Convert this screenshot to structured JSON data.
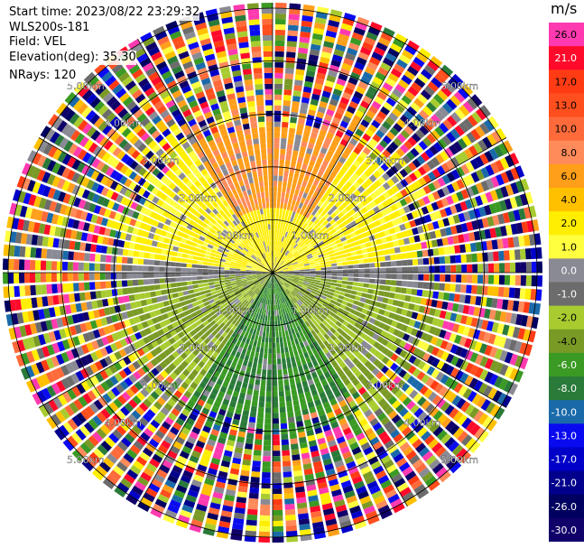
{
  "info": {
    "start_time": "Start time: 2023/08/22 23:29:32",
    "instrument": "WLS200s-181",
    "field": "Field: VEL",
    "elevation": "Elevation(deg): 35.30",
    "nrays": "NRays: 120"
  },
  "chart_data": {
    "type": "ppi",
    "field": "VEL",
    "unit": "m/s",
    "nrays": 120,
    "range_rings_km": [
      1.0,
      2.0,
      3.0,
      4.0,
      5.0
    ],
    "ring_labels": [
      "1.00km",
      "2.00km",
      "3.00km",
      "4.00km",
      "5.00km"
    ],
    "max_range_km": 5.0,
    "colorbar": {
      "ticks": [
        "26.0",
        "21.0",
        "17.0",
        "13.0",
        "10.0",
        "8.0",
        "6.0",
        "4.0",
        "2.0",
        "1.0",
        "0.0",
        "-1.0",
        "-2.0",
        "-4.0",
        "-6.0",
        "-8.0",
        "-10.0",
        "-13.0",
        "-17.0",
        "-21.0",
        "-26.0",
        "-30.0"
      ],
      "colors": [
        "#ff3ab0",
        "#ff0a2a",
        "#ff3b14",
        "#ff4f1e",
        "#ff6a3a",
        "#ff8a5a",
        "#ff9f1a",
        "#ffc000",
        "#ffee00",
        "#ffff40",
        "#8a8a94",
        "#6c6c6c",
        "#a8cc30",
        "#7a9a26",
        "#3a9a24",
        "#2a7a3a",
        "#1a6aaa",
        "#0a0af0",
        "#0000c8",
        "#00008c",
        "#000060",
        "#10006a"
      ]
    },
    "velocity_pattern": "northern half positive (toward yellow/orange), southern half negative (green); near-zero grey band along east-west"
  }
}
